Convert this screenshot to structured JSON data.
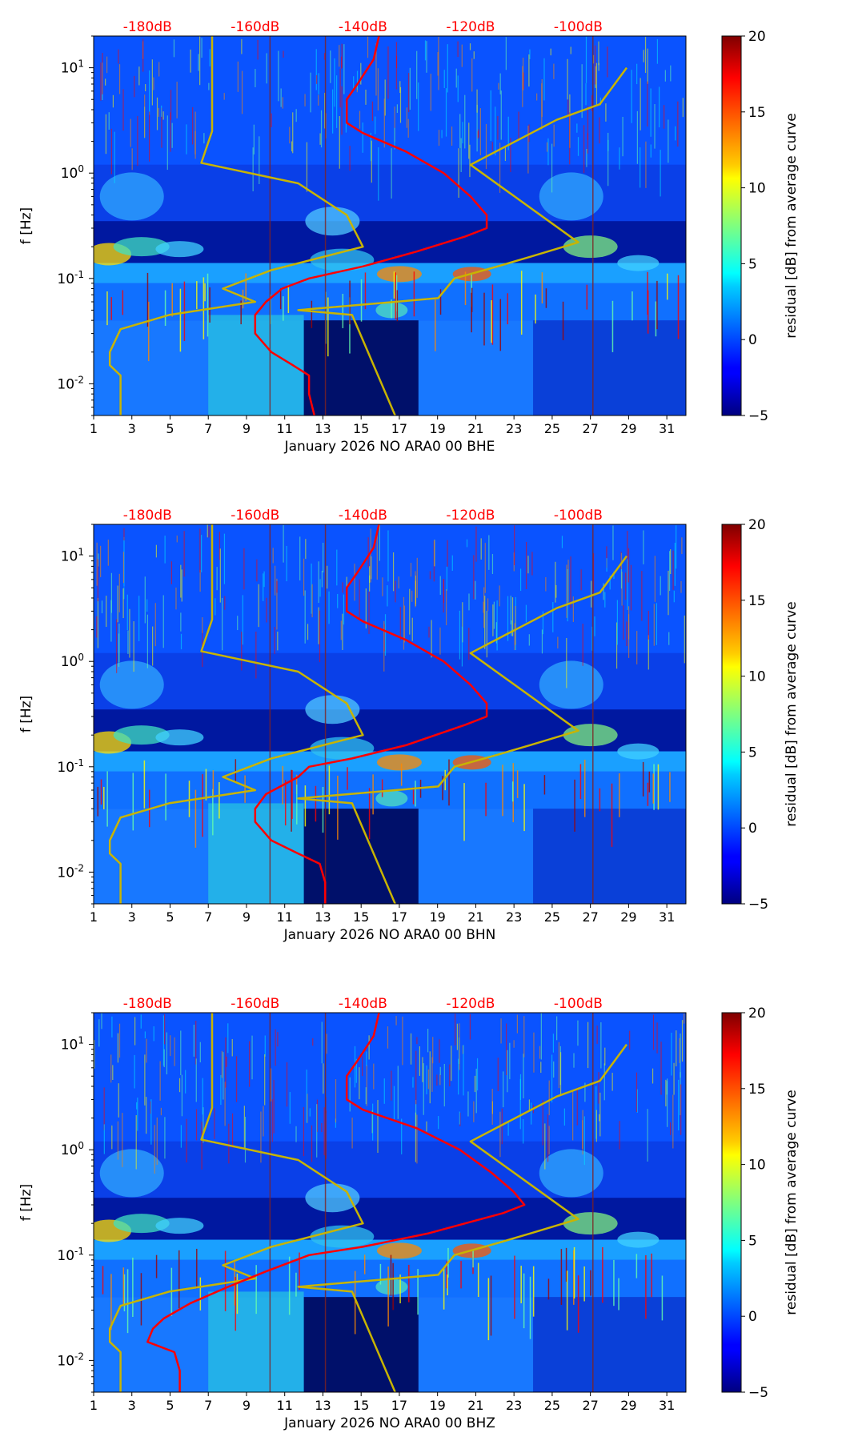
{
  "chart_data": [
    {
      "type": "heatmap",
      "xlabel": "January 2026 NO ARA0 00 BHE",
      "ylabel": "f [Hz]",
      "x_ticks": [
        "1",
        "3",
        "5",
        "7",
        "9",
        "11",
        "13",
        "15",
        "17",
        "19",
        "21",
        "23",
        "25",
        "27",
        "29",
        "31"
      ],
      "x_range": [
        1,
        32
      ],
      "y_scale": "log",
      "y_range": [
        0.005,
        20
      ],
      "y_ticks": [
        {
          "value": 10,
          "label": "10^1"
        },
        {
          "value": 1,
          "label": "10^0"
        },
        {
          "value": 0.1,
          "label": "10^-1"
        },
        {
          "value": 0.01,
          "label": "10^-2"
        }
      ],
      "top_labels": [
        "-180dB",
        "-160dB",
        "-140dB",
        "-120dB",
        "-100dB"
      ],
      "top_label_color": "#ff0000",
      "colorbar": {
        "label": "residual [dB] from average curve",
        "min": -5,
        "max": 20,
        "ticks": [
          "20",
          "15",
          "10",
          "5",
          "0",
          "−5"
        ],
        "colormap": "jet"
      },
      "median_curve": {
        "color": "#ff0000",
        "db_range": [
          -190,
          -80
        ],
        "points": [
          [
            -137,
            20
          ],
          [
            -138,
            12
          ],
          [
            -141,
            7
          ],
          [
            -143,
            5
          ],
          [
            -143,
            3
          ],
          [
            -140,
            2.4
          ],
          [
            -132,
            1.6
          ],
          [
            -125,
            1
          ],
          [
            -120,
            0.6
          ],
          [
            -117,
            0.4
          ],
          [
            -117,
            0.3
          ],
          [
            -121,
            0.25
          ],
          [
            -130,
            0.18
          ],
          [
            -140,
            0.13
          ],
          [
            -150,
            0.1
          ],
          [
            -155,
            0.08
          ],
          [
            -158,
            0.06
          ],
          [
            -160,
            0.045
          ],
          [
            -160,
            0.035
          ],
          [
            -160,
            0.03
          ],
          [
            -157,
            0.02
          ],
          [
            -153,
            0.015
          ],
          [
            -150,
            0.012
          ],
          [
            -150,
            0.008
          ],
          [
            -149,
            0.005
          ]
        ]
      },
      "noise_model": {
        "color": "#c8b400",
        "db_range": [
          -190,
          -80
        ],
        "nlnm": [
          [
            -168,
            20
          ],
          [
            -168,
            10
          ],
          [
            -168,
            2.5
          ],
          [
            -170,
            1.25
          ],
          [
            -152,
            0.8
          ],
          [
            -143,
            0.4
          ],
          [
            -140,
            0.2
          ],
          [
            -157,
            0.12
          ],
          [
            -166,
            0.08
          ],
          [
            -160,
            0.06
          ],
          [
            -176,
            0.045
          ],
          [
            -185,
            0.033
          ],
          [
            -187,
            0.02
          ],
          [
            -187,
            0.015
          ],
          [
            -185,
            0.012
          ],
          [
            -185,
            0.008
          ],
          [
            -185,
            0.005
          ]
        ],
        "nhnm": [
          [
            -91,
            10
          ],
          [
            -96,
            4.5
          ],
          [
            -104,
            3.2
          ],
          [
            -120,
            1.2
          ],
          [
            -100,
            0.22
          ],
          [
            -109,
            0.16
          ],
          [
            -115,
            0.13
          ],
          [
            -123,
            0.1
          ],
          [
            -126,
            0.065
          ],
          [
            -152,
            0.05
          ],
          [
            -142,
            0.045
          ],
          [
            -134,
            0.005
          ]
        ]
      }
    },
    {
      "type": "heatmap",
      "xlabel": "January 2026 NO ARA0 00 BHN",
      "ylabel": "f [Hz]",
      "x_ticks": [
        "1",
        "3",
        "5",
        "7",
        "9",
        "11",
        "13",
        "15",
        "17",
        "19",
        "21",
        "23",
        "25",
        "27",
        "29",
        "31"
      ],
      "x_range": [
        1,
        32
      ],
      "y_scale": "log",
      "y_range": [
        0.005,
        20
      ],
      "y_ticks": [
        {
          "value": 10,
          "label": "10^1"
        },
        {
          "value": 1,
          "label": "10^0"
        },
        {
          "value": 0.1,
          "label": "10^-1"
        },
        {
          "value": 0.01,
          "label": "10^-2"
        }
      ],
      "top_labels": [
        "-180dB",
        "-160dB",
        "-140dB",
        "-120dB",
        "-100dB"
      ],
      "top_label_color": "#ff0000",
      "colorbar": {
        "label": "residual [dB] from average curve",
        "min": -5,
        "max": 20,
        "ticks": [
          "20",
          "15",
          "10",
          "5",
          "0",
          "−5"
        ],
        "colormap": "jet"
      },
      "median_curve": {
        "color": "#ff0000",
        "db_range": [
          -190,
          -80
        ],
        "points": [
          [
            -137,
            20
          ],
          [
            -138,
            12
          ],
          [
            -141,
            7
          ],
          [
            -143,
            5
          ],
          [
            -143,
            3
          ],
          [
            -140,
            2.4
          ],
          [
            -132,
            1.6
          ],
          [
            -125,
            1
          ],
          [
            -120,
            0.6
          ],
          [
            -117,
            0.4
          ],
          [
            -117,
            0.3
          ],
          [
            -121,
            0.25
          ],
          [
            -132,
            0.16
          ],
          [
            -142,
            0.12
          ],
          [
            -150,
            0.1
          ],
          [
            -152,
            0.08
          ],
          [
            -158,
            0.055
          ],
          [
            -160,
            0.04
          ],
          [
            -160,
            0.03
          ],
          [
            -157,
            0.02
          ],
          [
            -152,
            0.015
          ],
          [
            -148,
            0.012
          ],
          [
            -147,
            0.008
          ],
          [
            -147,
            0.005
          ]
        ]
      },
      "noise_model": {
        "color": "#c8b400",
        "db_range": [
          -190,
          -80
        ],
        "nlnm": [
          [
            -168,
            20
          ],
          [
            -168,
            10
          ],
          [
            -168,
            2.5
          ],
          [
            -170,
            1.25
          ],
          [
            -152,
            0.8
          ],
          [
            -143,
            0.4
          ],
          [
            -140,
            0.2
          ],
          [
            -157,
            0.12
          ],
          [
            -166,
            0.08
          ],
          [
            -160,
            0.06
          ],
          [
            -176,
            0.045
          ],
          [
            -185,
            0.033
          ],
          [
            -187,
            0.02
          ],
          [
            -187,
            0.015
          ],
          [
            -185,
            0.012
          ],
          [
            -185,
            0.008
          ],
          [
            -185,
            0.005
          ]
        ],
        "nhnm": [
          [
            -91,
            10
          ],
          [
            -96,
            4.5
          ],
          [
            -104,
            3.2
          ],
          [
            -120,
            1.2
          ],
          [
            -100,
            0.22
          ],
          [
            -109,
            0.16
          ],
          [
            -115,
            0.13
          ],
          [
            -123,
            0.1
          ],
          [
            -126,
            0.065
          ],
          [
            -152,
            0.05
          ],
          [
            -142,
            0.045
          ],
          [
            -134,
            0.005
          ]
        ]
      }
    },
    {
      "type": "heatmap",
      "xlabel": "January 2026 NO ARA0 00 BHZ",
      "ylabel": "f [Hz]",
      "x_ticks": [
        "1",
        "3",
        "5",
        "7",
        "9",
        "11",
        "13",
        "15",
        "17",
        "19",
        "21",
        "23",
        "25",
        "27",
        "29",
        "31"
      ],
      "x_range": [
        1,
        32
      ],
      "y_scale": "log",
      "y_range": [
        0.005,
        20
      ],
      "y_ticks": [
        {
          "value": 10,
          "label": "10^1"
        },
        {
          "value": 1,
          "label": "10^0"
        },
        {
          "value": 0.1,
          "label": "10^-1"
        },
        {
          "value": 0.01,
          "label": "10^-2"
        }
      ],
      "top_labels": [
        "-180dB",
        "-160dB",
        "-140dB",
        "-120dB",
        "-100dB"
      ],
      "top_label_color": "#ff0000",
      "colorbar": {
        "label": "residual [dB] from average curve",
        "min": -5,
        "max": 20,
        "ticks": [
          "20",
          "15",
          "10",
          "5",
          "0",
          "−5"
        ],
        "colormap": "jet"
      },
      "median_curve": {
        "color": "#ff0000",
        "db_range": [
          -190,
          -80
        ],
        "points": [
          [
            -137,
            20
          ],
          [
            -138,
            12
          ],
          [
            -141,
            7
          ],
          [
            -143,
            5
          ],
          [
            -143,
            3
          ],
          [
            -140,
            2.4
          ],
          [
            -130,
            1.6
          ],
          [
            -122,
            1
          ],
          [
            -116,
            0.6
          ],
          [
            -112,
            0.4
          ],
          [
            -110,
            0.3
          ],
          [
            -114,
            0.25
          ],
          [
            -128,
            0.16
          ],
          [
            -140,
            0.12
          ],
          [
            -150,
            0.1
          ],
          [
            -158,
            0.07
          ],
          [
            -165,
            0.05
          ],
          [
            -172,
            0.035
          ],
          [
            -177,
            0.025
          ],
          [
            -179,
            0.02
          ],
          [
            -180,
            0.015
          ],
          [
            -175,
            0.012
          ],
          [
            -174,
            0.008
          ],
          [
            -174,
            0.005
          ]
        ]
      },
      "noise_model": {
        "color": "#c8b400",
        "db_range": [
          -190,
          -80
        ],
        "nlnm": [
          [
            -168,
            20
          ],
          [
            -168,
            10
          ],
          [
            -168,
            2.5
          ],
          [
            -170,
            1.25
          ],
          [
            -152,
            0.8
          ],
          [
            -143,
            0.4
          ],
          [
            -140,
            0.2
          ],
          [
            -157,
            0.12
          ],
          [
            -166,
            0.08
          ],
          [
            -160,
            0.06
          ],
          [
            -176,
            0.045
          ],
          [
            -185,
            0.033
          ],
          [
            -187,
            0.02
          ],
          [
            -187,
            0.015
          ],
          [
            -185,
            0.012
          ],
          [
            -185,
            0.008
          ],
          [
            -185,
            0.005
          ]
        ],
        "nhnm": [
          [
            -91,
            10
          ],
          [
            -96,
            4.5
          ],
          [
            -104,
            3.2
          ],
          [
            -120,
            1.2
          ],
          [
            -100,
            0.22
          ],
          [
            -109,
            0.16
          ],
          [
            -115,
            0.13
          ],
          [
            -123,
            0.1
          ],
          [
            -126,
            0.065
          ],
          [
            -152,
            0.05
          ],
          [
            -142,
            0.045
          ],
          [
            -134,
            0.005
          ]
        ]
      }
    }
  ]
}
